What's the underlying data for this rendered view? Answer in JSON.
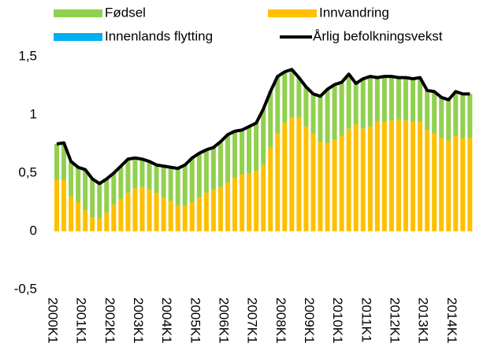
{
  "chart_data": {
    "type": "bar",
    "categories": [
      "2000K1",
      null,
      null,
      null,
      "2001K1",
      null,
      null,
      null,
      "2002K1",
      null,
      null,
      null,
      "2003K1",
      null,
      null,
      null,
      "2004K1",
      null,
      null,
      null,
      "2005K1",
      null,
      null,
      null,
      "2006K1",
      null,
      null,
      null,
      "2007K1",
      null,
      null,
      null,
      "2008K1",
      null,
      null,
      null,
      "2009K1",
      null,
      null,
      null,
      "2010K1",
      null,
      null,
      null,
      "2011K1",
      null,
      null,
      null,
      "2012K1",
      null,
      null,
      null,
      "2013K1",
      null,
      null,
      null,
      "2014K1",
      null,
      null
    ],
    "series": [
      {
        "name": "Fødsel",
        "color": "#92d050",
        "values": [
          0.31,
          0.32,
          0.3,
          0.3,
          0.35,
          0.33,
          0.3,
          0.29,
          0.27,
          0.28,
          0.29,
          0.26,
          0.24,
          0.24,
          0.24,
          0.27,
          0.29,
          0.32,
          0.35,
          0.38,
          0.38,
          0.37,
          0.36,
          0.39,
          0.41,
          0.4,
          0.38,
          0.4,
          0.41,
          0.48,
          0.48,
          0.49,
          0.44,
          0.41,
          0.34,
          0.34,
          0.34,
          0.39,
          0.46,
          0.47,
          0.46,
          0.47,
          0.35,
          0.43,
          0.43,
          0.38,
          0.39,
          0.38,
          0.36,
          0.37,
          0.37,
          0.38,
          0.34,
          0.36,
          0.35,
          0.35,
          0.38,
          0.38,
          0.38
        ]
      },
      {
        "name": "Innvandring",
        "color": "#ffc000",
        "values": [
          0.44,
          0.44,
          0.3,
          0.25,
          0.18,
          0.12,
          0.11,
          0.16,
          0.23,
          0.28,
          0.33,
          0.37,
          0.38,
          0.36,
          0.33,
          0.29,
          0.26,
          0.22,
          0.22,
          0.25,
          0.29,
          0.33,
          0.36,
          0.38,
          0.42,
          0.46,
          0.49,
          0.5,
          0.52,
          0.57,
          0.72,
          0.84,
          0.93,
          0.98,
          0.98,
          0.9,
          0.84,
          0.77,
          0.76,
          0.79,
          0.82,
          0.88,
          0.92,
          0.88,
          0.9,
          0.94,
          0.94,
          0.95,
          0.96,
          0.95,
          0.94,
          0.94,
          0.87,
          0.84,
          0.8,
          0.78,
          0.82,
          0.8,
          0.8
        ]
      },
      {
        "name": "Innenlands flytting",
        "color": "#00b0f0",
        "values": [
          0,
          0,
          0,
          0,
          0,
          0,
          0,
          0,
          0,
          0,
          0,
          0,
          0,
          0,
          0,
          0,
          0,
          0,
          0,
          0,
          0,
          0,
          0,
          0,
          0,
          0,
          0,
          0,
          0,
          0,
          0,
          0,
          0,
          0,
          0,
          0,
          0,
          0,
          0,
          0,
          0,
          0,
          0,
          0,
          0,
          0,
          0,
          0,
          0,
          0,
          0,
          0,
          0,
          0,
          0,
          0,
          0,
          0,
          0
        ]
      },
      {
        "name": "Årlig befolkningsvekst",
        "color": "#000000",
        "type": "line",
        "values": [
          0.75,
          0.76,
          0.6,
          0.55,
          0.53,
          0.45,
          0.41,
          0.45,
          0.5,
          0.56,
          0.62,
          0.63,
          0.62,
          0.6,
          0.57,
          0.56,
          0.55,
          0.54,
          0.57,
          0.63,
          0.67,
          0.7,
          0.72,
          0.77,
          0.83,
          0.86,
          0.87,
          0.9,
          0.93,
          1.05,
          1.2,
          1.33,
          1.37,
          1.39,
          1.32,
          1.24,
          1.18,
          1.16,
          1.22,
          1.26,
          1.28,
          1.35,
          1.27,
          1.31,
          1.33,
          1.32,
          1.33,
          1.33,
          1.32,
          1.32,
          1.31,
          1.32,
          1.21,
          1.2,
          1.15,
          1.13,
          1.2,
          1.18,
          1.18
        ]
      }
    ],
    "ylim": [
      -0.5,
      1.5
    ],
    "yticks": [
      {
        "value": -0.5,
        "label": "-0,5"
      },
      0,
      {
        "value": 0.5,
        "label": "0,5"
      },
      1,
      {
        "value": 1.5,
        "label": "1,5"
      }
    ],
    "grid": false
  }
}
